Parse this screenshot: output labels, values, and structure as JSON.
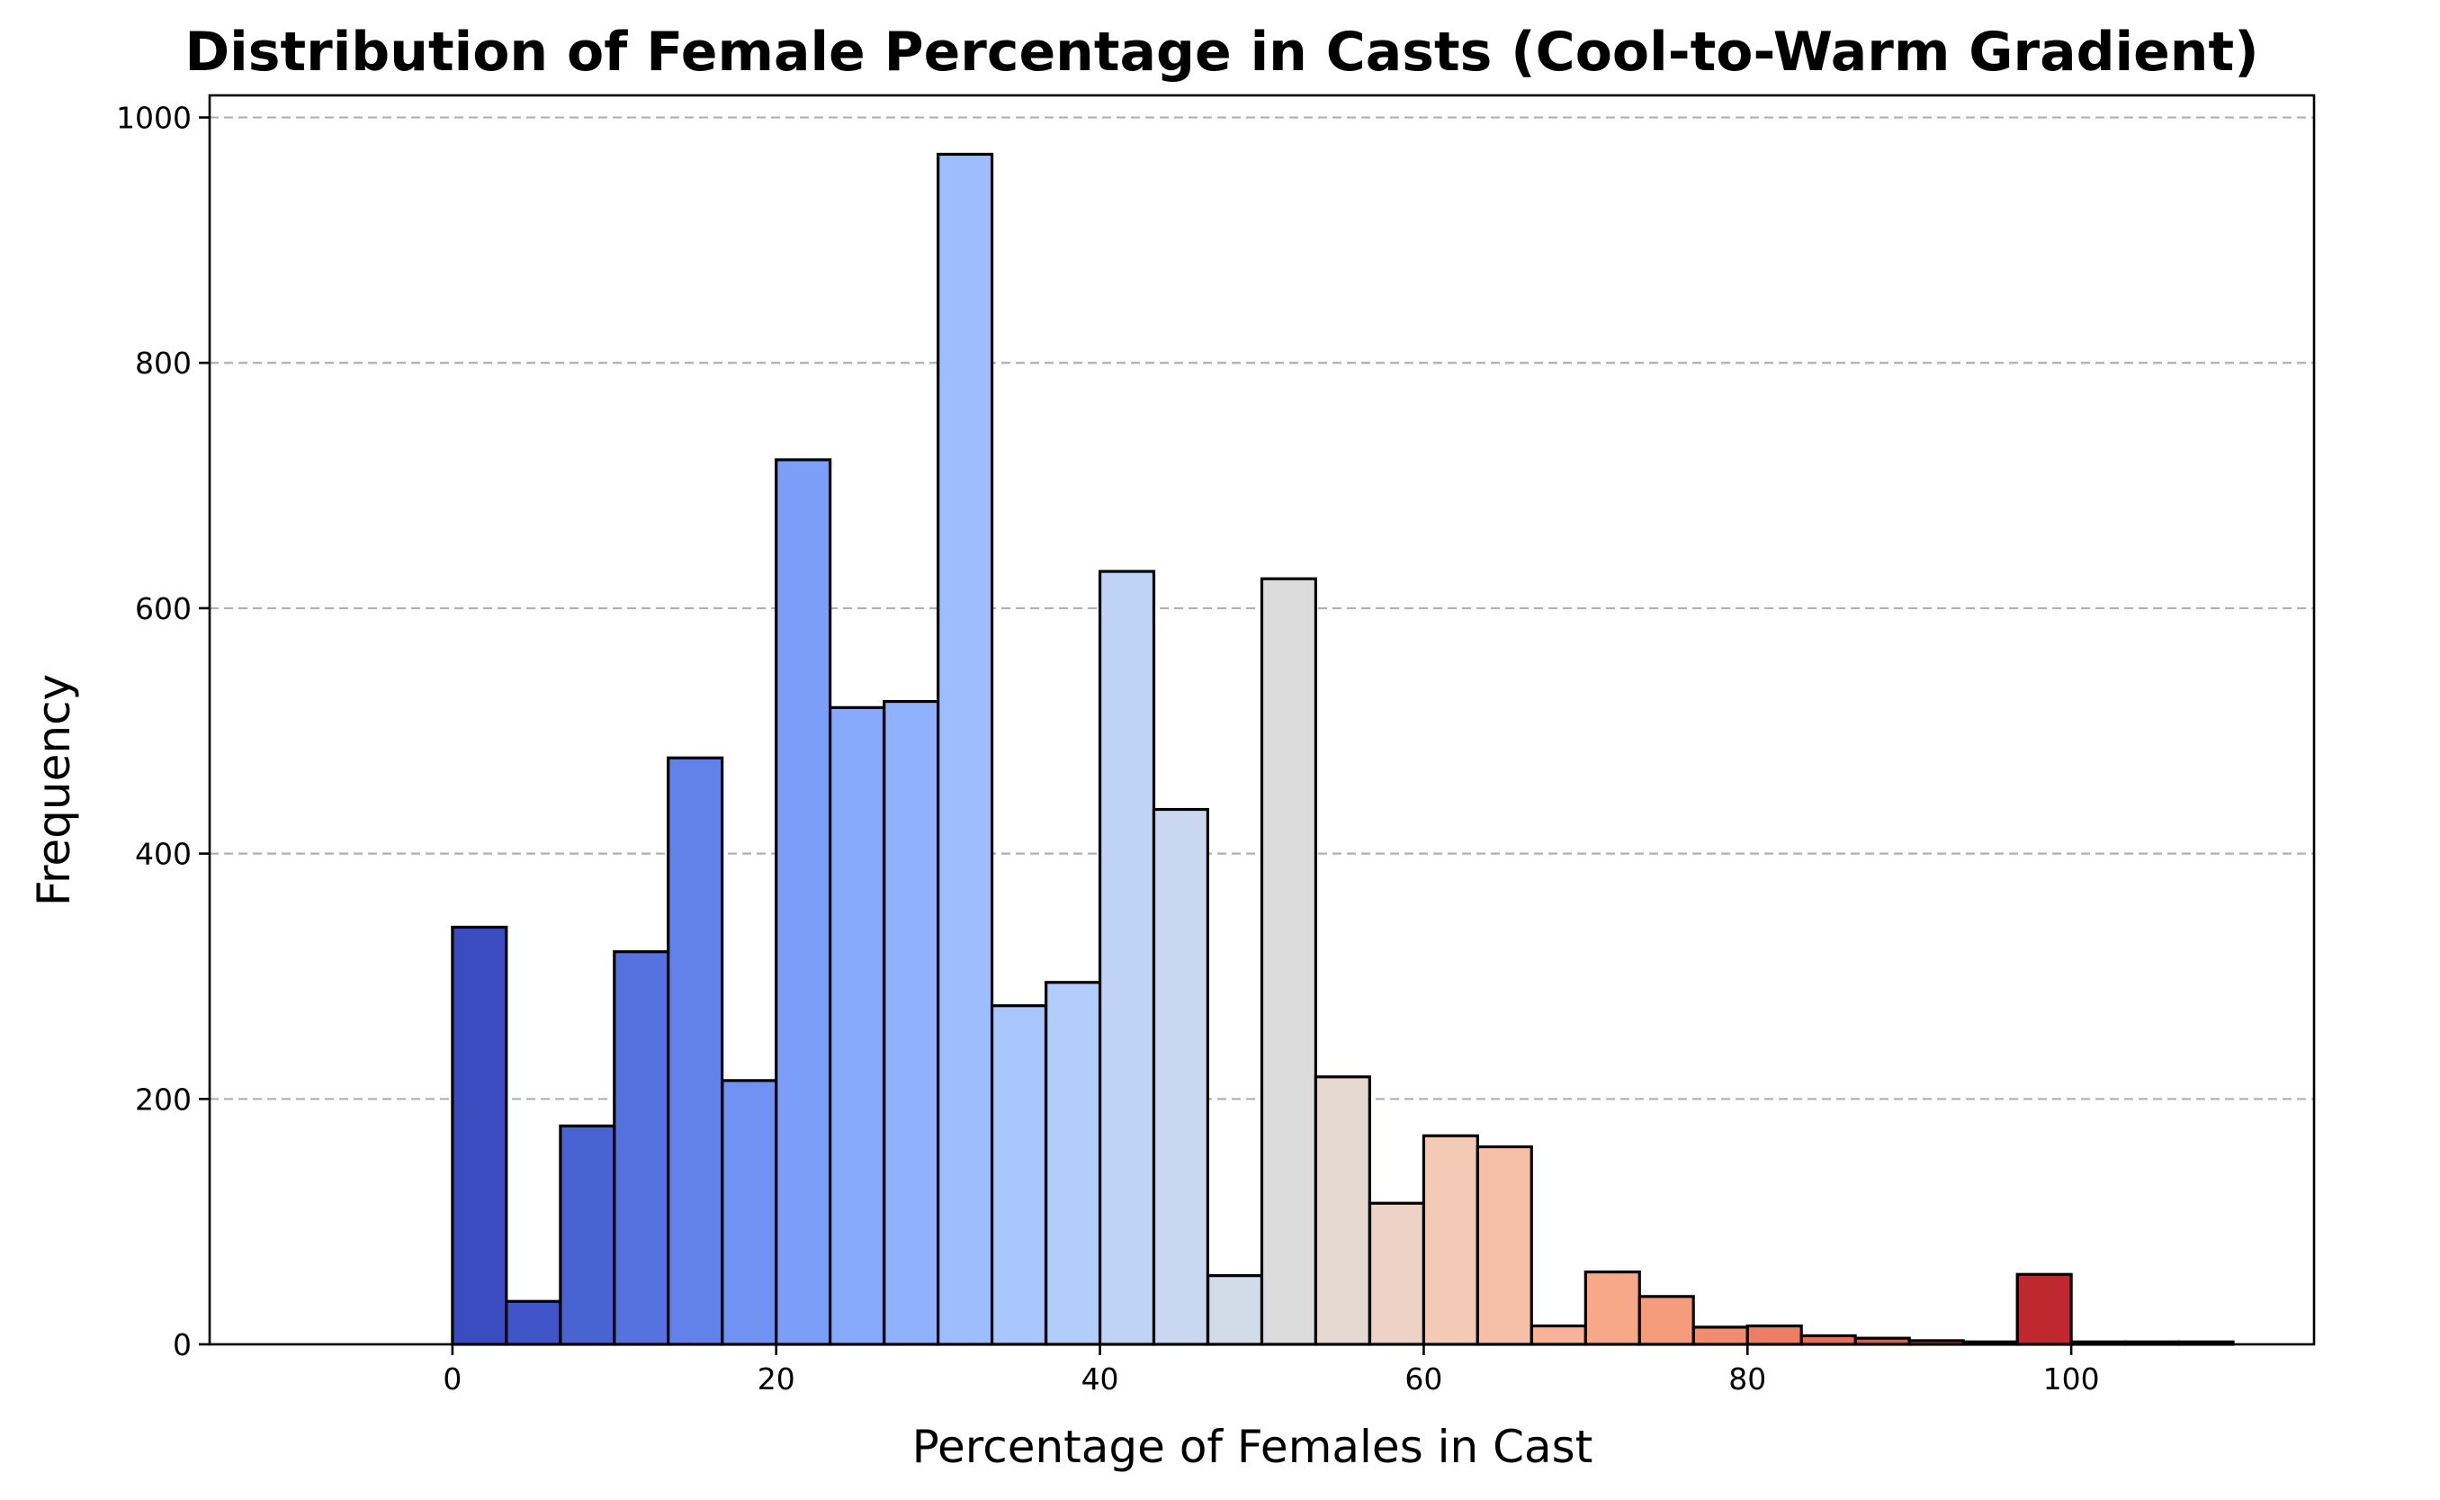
{
  "chart_data": {
    "type": "bar",
    "title": "Distribution of Female Percentage in Casts (Cool-to-Warm Gradient)",
    "xlabel": "Percentage of Females in Cast",
    "ylabel": "Frequency",
    "xlim": [
      -15,
      115
    ],
    "ylim": [
      0,
      1018
    ],
    "xticks": [
      0,
      20,
      40,
      60,
      80,
      100
    ],
    "yticks": [
      0,
      200,
      400,
      600,
      800,
      1000
    ],
    "grid": "y-dashed",
    "bin_width": 3.33,
    "bins": [
      {
        "x0": -9.33,
        "value": 0,
        "color": "#3b4cc0"
      },
      {
        "x0": -6.0,
        "value": 0,
        "color": "#3b4cc0"
      },
      {
        "x0": -2.67,
        "value": 0,
        "color": "#3b4cc0"
      },
      {
        "x0": 0.0,
        "value": 340,
        "color": "#3b4cc0"
      },
      {
        "x0": 3.33,
        "value": 35,
        "color": "#4055c8"
      },
      {
        "x0": 6.67,
        "value": 178,
        "color": "#4a63d3"
      },
      {
        "x0": 10.0,
        "value": 320,
        "color": "#5572df"
      },
      {
        "x0": 13.33,
        "value": 478,
        "color": "#6282ea"
      },
      {
        "x0": 16.67,
        "value": 215,
        "color": "#6f92f3"
      },
      {
        "x0": 20.0,
        "value": 721,
        "color": "#7b9ff9"
      },
      {
        "x0": 23.33,
        "value": 519,
        "color": "#86a9fc"
      },
      {
        "x0": 26.67,
        "value": 524,
        "color": "#90b2fe"
      },
      {
        "x0": 30.0,
        "value": 970,
        "color": "#9dbdff"
      },
      {
        "x0": 33.33,
        "value": 276,
        "color": "#a9c6fd"
      },
      {
        "x0": 36.67,
        "value": 295,
        "color": "#b3cdfb"
      },
      {
        "x0": 40.0,
        "value": 630,
        "color": "#bfd3f6"
      },
      {
        "x0": 43.33,
        "value": 436,
        "color": "#c9d7f0"
      },
      {
        "x0": 46.67,
        "value": 56,
        "color": "#d2dbe8"
      },
      {
        "x0": 50.0,
        "value": 624,
        "color": "#dddcdc"
      },
      {
        "x0": 53.33,
        "value": 218,
        "color": "#e5d8d1"
      },
      {
        "x0": 56.67,
        "value": 115,
        "color": "#ecd3c5"
      },
      {
        "x0": 60.0,
        "value": 170,
        "color": "#f2cab5"
      },
      {
        "x0": 63.33,
        "value": 161,
        "color": "#f5c0a7"
      },
      {
        "x0": 66.67,
        "value": 15,
        "color": "#f7b497"
      },
      {
        "x0": 70.0,
        "value": 59,
        "color": "#f7a889"
      },
      {
        "x0": 73.33,
        "value": 39,
        "color": "#f59c7d"
      },
      {
        "x0": 76.67,
        "value": 14,
        "color": "#f18d6f"
      },
      {
        "x0": 80.0,
        "value": 15,
        "color": "#ec7f63"
      },
      {
        "x0": 83.33,
        "value": 7,
        "color": "#e57058"
      },
      {
        "x0": 86.67,
        "value": 5,
        "color": "#dc5d4a"
      },
      {
        "x0": 90.0,
        "value": 3,
        "color": "#d24b40"
      },
      {
        "x0": 93.33,
        "value": 2,
        "color": "#c43032"
      },
      {
        "x0": 96.67,
        "value": 57,
        "color": "#c0282f"
      },
      {
        "x0": 100.0,
        "value": 2,
        "color": "#b40426"
      },
      {
        "x0": 103.33,
        "value": 2,
        "color": "#b40426"
      },
      {
        "x0": 106.67,
        "value": 2,
        "color": "#b40426"
      }
    ]
  }
}
